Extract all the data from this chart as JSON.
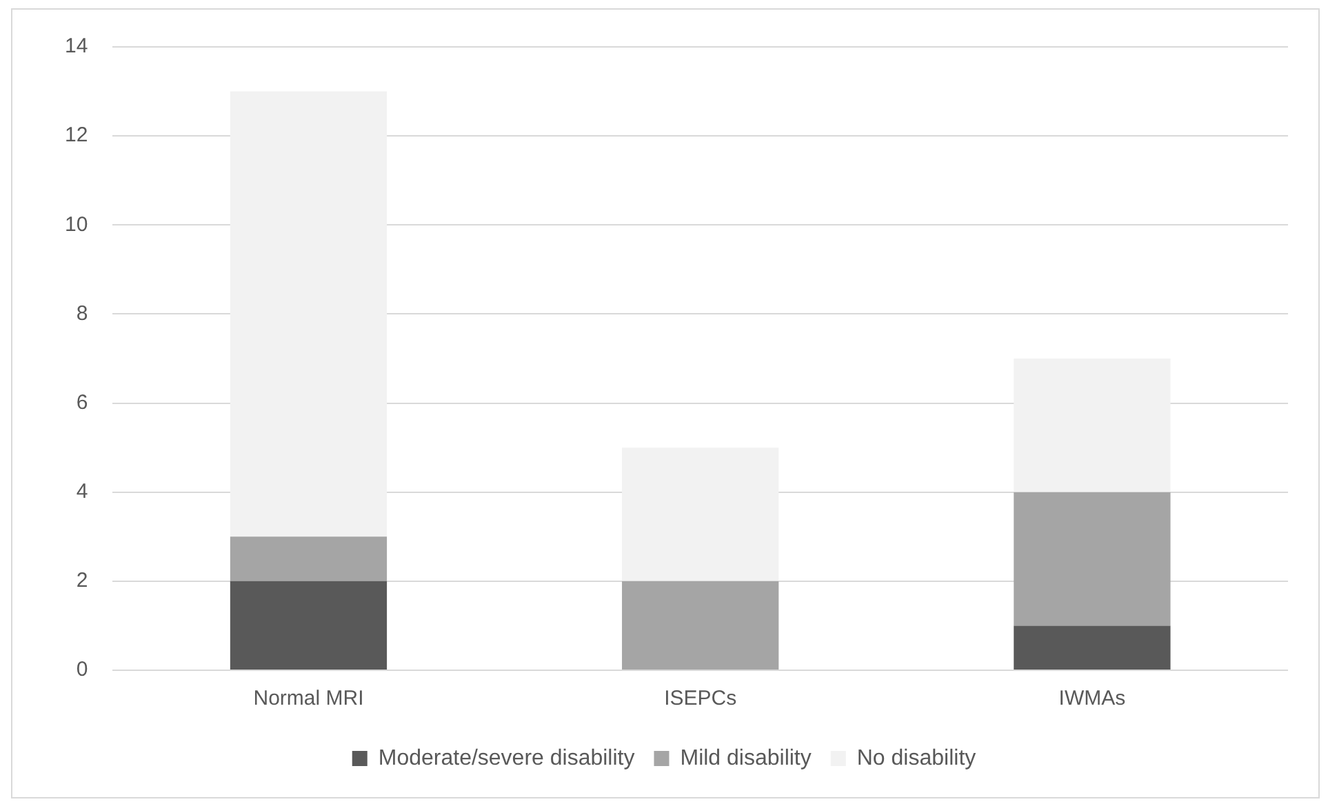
{
  "chart_data": {
    "type": "bar",
    "stacked": true,
    "categories": [
      "Normal MRI",
      "ISEPCs",
      "IWMAs"
    ],
    "series": [
      {
        "name": "Moderate/severe disability",
        "color": "#595959",
        "values": [
          2,
          0,
          1
        ]
      },
      {
        "name": "Mild disability",
        "color": "#a5a5a5",
        "values": [
          1,
          2,
          3
        ]
      },
      {
        "name": "No disability",
        "color": "#f2f2f2",
        "values": [
          10,
          3,
          3
        ]
      }
    ],
    "ylim": [
      0,
      14
    ],
    "yticks": [
      0,
      2,
      4,
      6,
      8,
      10,
      12,
      14
    ],
    "grid": "y",
    "legend": "bottom"
  }
}
